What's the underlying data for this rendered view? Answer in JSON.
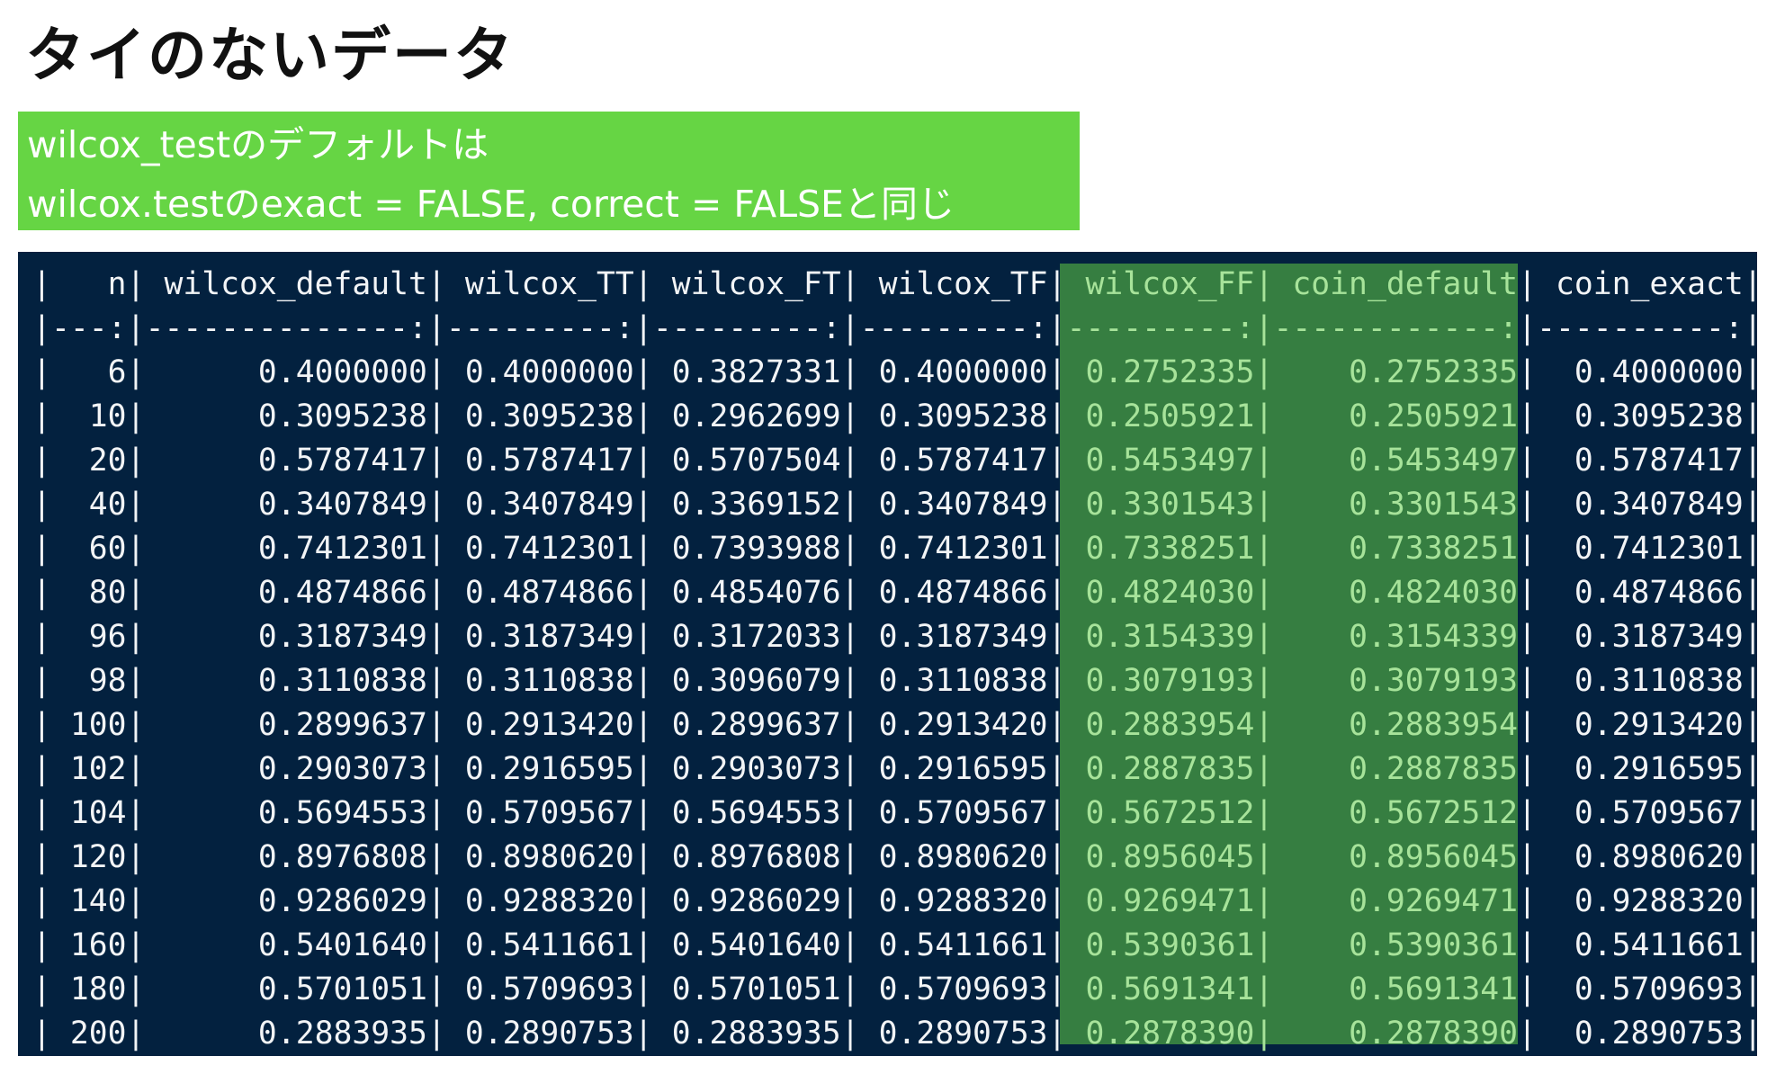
{
  "title": "タイのないデータ",
  "note": {
    "line1": "wilcox_testのデフォルトは",
    "line2": "wilcox.testのexact = FALSE, correct = FALSEと同じ"
  },
  "colors": {
    "terminal_bg": "#03213f",
    "highlight_bg": "#367e41",
    "highlight_text": "#a7e39a",
    "note_bg": "#66d544"
  },
  "table": {
    "highlighted_columns": [
      "wilcox_FF",
      "coin_default"
    ],
    "headers": [
      "n",
      "wilcox_default",
      "wilcox_TT",
      "wilcox_FT",
      "wilcox_TF",
      "wilcox_FF",
      "coin_default",
      "coin_exact"
    ],
    "separator": [
      "---:",
      "--------------:",
      "---------:",
      "---------:",
      "---------:",
      "---------:",
      "------------:",
      "----------:"
    ],
    "rows": [
      [
        "6",
        "0.4000000",
        "0.4000000",
        "0.3827331",
        "0.4000000",
        "0.2752335",
        "0.2752335",
        "0.4000000"
      ],
      [
        "10",
        "0.3095238",
        "0.3095238",
        "0.2962699",
        "0.3095238",
        "0.2505921",
        "0.2505921",
        "0.3095238"
      ],
      [
        "20",
        "0.5787417",
        "0.5787417",
        "0.5707504",
        "0.5787417",
        "0.5453497",
        "0.5453497",
        "0.5787417"
      ],
      [
        "40",
        "0.3407849",
        "0.3407849",
        "0.3369152",
        "0.3407849",
        "0.3301543",
        "0.3301543",
        "0.3407849"
      ],
      [
        "60",
        "0.7412301",
        "0.7412301",
        "0.7393988",
        "0.7412301",
        "0.7338251",
        "0.7338251",
        "0.7412301"
      ],
      [
        "80",
        "0.4874866",
        "0.4874866",
        "0.4854076",
        "0.4874866",
        "0.4824030",
        "0.4824030",
        "0.4874866"
      ],
      [
        "96",
        "0.3187349",
        "0.3187349",
        "0.3172033",
        "0.3187349",
        "0.3154339",
        "0.3154339",
        "0.3187349"
      ],
      [
        "98",
        "0.3110838",
        "0.3110838",
        "0.3096079",
        "0.3110838",
        "0.3079193",
        "0.3079193",
        "0.3110838"
      ],
      [
        "100",
        "0.2899637",
        "0.2913420",
        "0.2899637",
        "0.2913420",
        "0.2883954",
        "0.2883954",
        "0.2913420"
      ],
      [
        "102",
        "0.2903073",
        "0.2916595",
        "0.2903073",
        "0.2916595",
        "0.2887835",
        "0.2887835",
        "0.2916595"
      ],
      [
        "104",
        "0.5694553",
        "0.5709567",
        "0.5694553",
        "0.5709567",
        "0.5672512",
        "0.5672512",
        "0.5709567"
      ],
      [
        "120",
        "0.8976808",
        "0.8980620",
        "0.8976808",
        "0.8980620",
        "0.8956045",
        "0.8956045",
        "0.8980620"
      ],
      [
        "140",
        "0.9286029",
        "0.9288320",
        "0.9286029",
        "0.9288320",
        "0.9269471",
        "0.9269471",
        "0.9288320"
      ],
      [
        "160",
        "0.5401640",
        "0.5411661",
        "0.5401640",
        "0.5411661",
        "0.5390361",
        "0.5390361",
        "0.5411661"
      ],
      [
        "180",
        "0.5701051",
        "0.5709693",
        "0.5701051",
        "0.5709693",
        "0.5691341",
        "0.5691341",
        "0.5709693"
      ],
      [
        "200",
        "0.2883935",
        "0.2890753",
        "0.2883935",
        "0.2890753",
        "0.2878390",
        "0.2878390",
        "0.2890753"
      ]
    ]
  }
}
